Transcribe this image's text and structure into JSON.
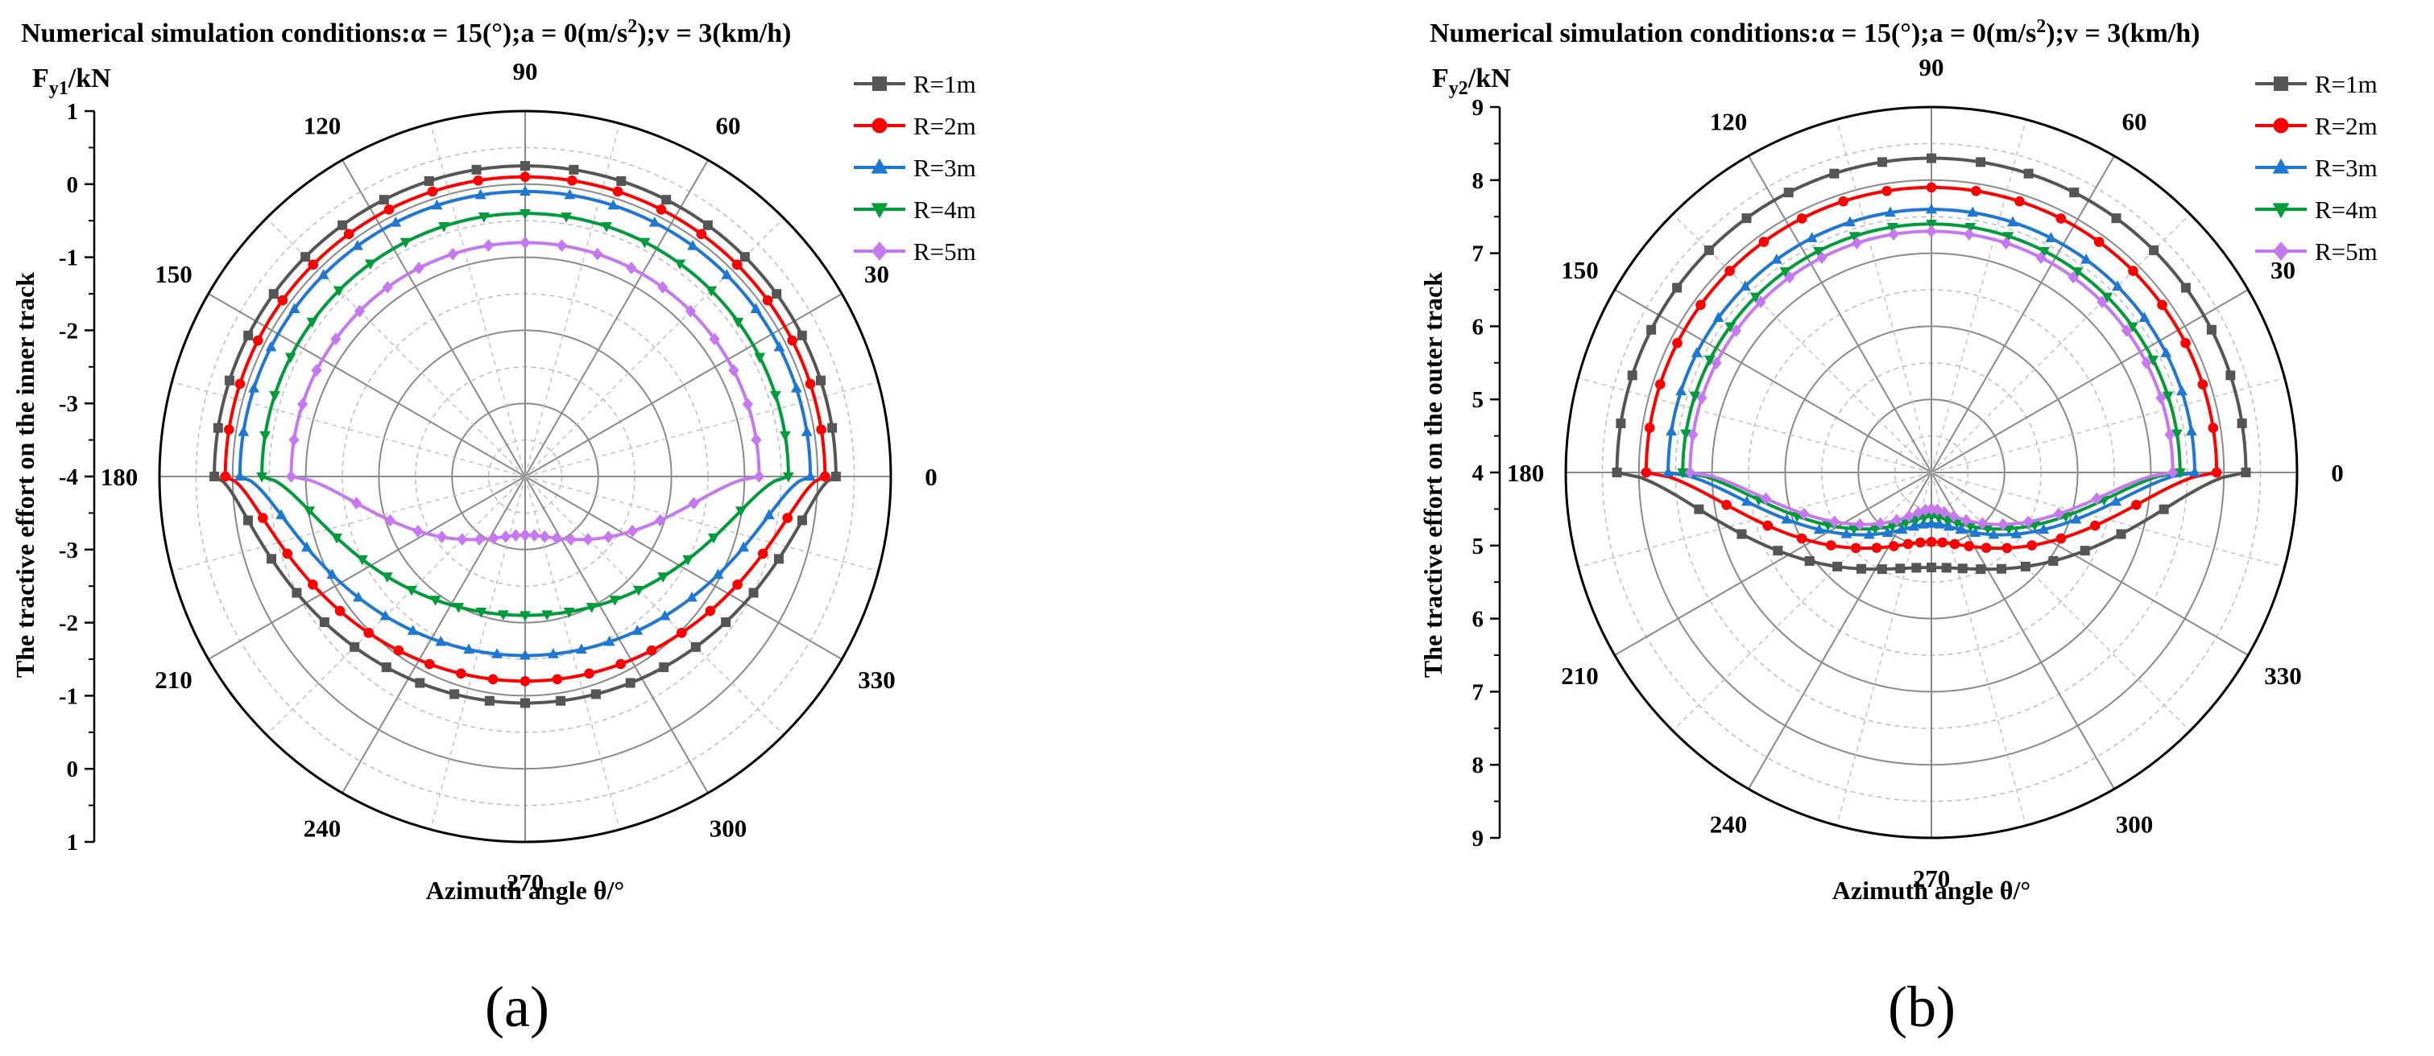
{
  "figure": {
    "panels": [
      {
        "label": "(a)",
        "title_parts": {
          "pre": "Numerical simulation conditions:α = 15(°);a = 0(m/s",
          "sup": "2",
          "post": ");v = 3(km/h)"
        },
        "radial_axis_label": {
          "base": "F",
          "sub": "y1",
          "unit": "/kN"
        },
        "side_axis_label": "The tractive effort on the inner track",
        "side_ticks_upper": [
          "1",
          "0",
          "-1",
          "-2",
          "-3",
          "-4"
        ],
        "side_ticks_lower": [
          "-3",
          "-2",
          "-1",
          "0",
          "1"
        ],
        "xaxis_label": "Azimuth angle θ/°"
      },
      {
        "label": "(b)",
        "title_parts": {
          "pre": "Numerical simulation conditions:α = 15(°);a = 0(m/s",
          "sup": "2",
          "post": ");v = 3(km/h)"
        },
        "radial_axis_label": {
          "base": "F",
          "sub": "y2",
          "unit": "/kN"
        },
        "side_axis_label": "The tractive effort on the outer track",
        "side_ticks_upper": [
          "9",
          "8",
          "7",
          "6",
          "5",
          "4"
        ],
        "side_ticks_lower": [
          "5",
          "6",
          "7",
          "8",
          "9"
        ],
        "xaxis_label": "Azimuth angle θ/°"
      }
    ]
  },
  "chart_data": [
    {
      "type": "polar-line",
      "title": "Numerical simulation conditions:α = 15(°);a = 0(m/s2);v = 3(km/h)",
      "panel_label": "(a)",
      "rlabel": "Fy1/kN",
      "ylabel": "The tractive effort on the inner track",
      "xlabel": "Azimuth angle θ/°",
      "rlim": [
        -4,
        1
      ],
      "angle_ticks": [
        0,
        30,
        60,
        90,
        120,
        150,
        180,
        210,
        240,
        270,
        300,
        330
      ],
      "legend_position": "top-right",
      "grid": true,
      "series": [
        {
          "name": "R=1m",
          "color": "#555555",
          "marker": "square",
          "upper_r": 0.25,
          "lower_r": -0.9
        },
        {
          "name": "R=2m",
          "color": "#ff0000",
          "marker": "circle",
          "upper_r": 0.1,
          "lower_r": -1.2
        },
        {
          "name": "R=3m",
          "color": "#1f77d4",
          "marker": "triangle-up",
          "upper_r": -0.1,
          "lower_r": -1.55
        },
        {
          "name": "R=4m",
          "color": "#009b3a",
          "marker": "triangle-down",
          "upper_r": -0.4,
          "lower_r": -2.1
        },
        {
          "name": "R=5m",
          "color": "#c678f0",
          "marker": "diamond",
          "upper_r": -0.8,
          "lower_r": -3.2
        }
      ]
    },
    {
      "type": "polar-line",
      "title": "Numerical simulation conditions:α = 15(°);a = 0(m/s2);v = 3(km/h)",
      "panel_label": "(b)",
      "rlabel": "Fy2/kN",
      "ylabel": "The tractive effort on the outer track",
      "xlabel": "Azimuth angle θ/°",
      "rlim": [
        4,
        9
      ],
      "angle_ticks": [
        0,
        30,
        60,
        90,
        120,
        150,
        180,
        210,
        240,
        270,
        300,
        330
      ],
      "legend_position": "top-right",
      "grid": true,
      "series": [
        {
          "name": "R=1m",
          "color": "#555555",
          "marker": "square",
          "upper_r": 8.3,
          "lower_r": 5.3
        },
        {
          "name": "R=2m",
          "color": "#ff0000",
          "marker": "circle",
          "upper_r": 7.9,
          "lower_r": 4.95
        },
        {
          "name": "R=3m",
          "color": "#1f77d4",
          "marker": "triangle-up",
          "upper_r": 7.6,
          "lower_r": 4.7
        },
        {
          "name": "R=4m",
          "color": "#009b3a",
          "marker": "triangle-down",
          "upper_r": 7.4,
          "lower_r": 4.6
        },
        {
          "name": "R=5m",
          "color": "#c678f0",
          "marker": "diamond",
          "upper_r": 7.3,
          "lower_r": 4.5
        }
      ]
    }
  ]
}
